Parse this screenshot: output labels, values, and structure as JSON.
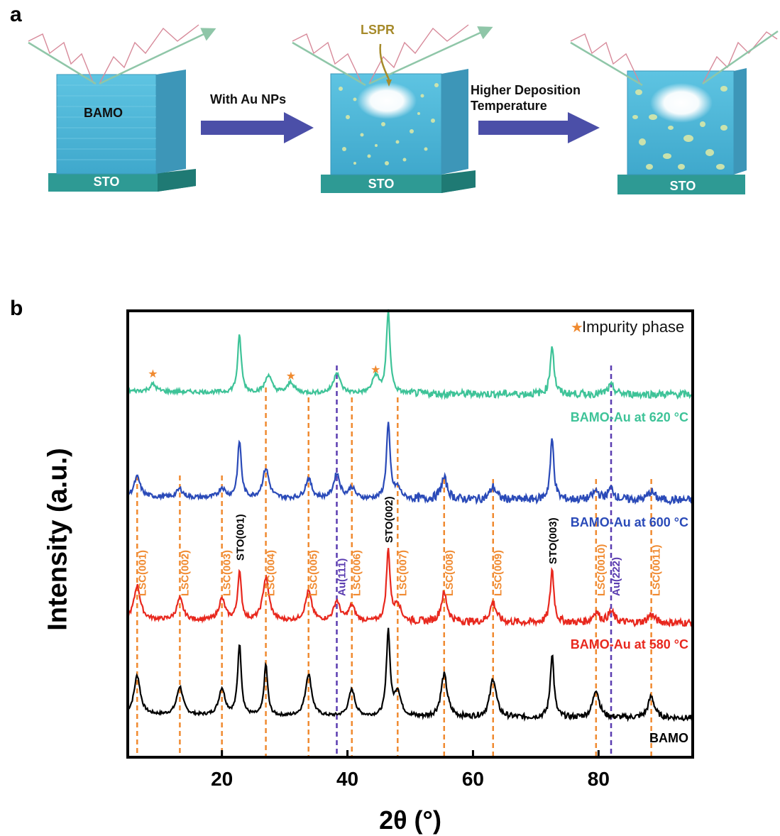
{
  "panel_a": {
    "label": "a",
    "film_label": "BAMO",
    "substrate_label": "STO",
    "lspr_label": "LSPR",
    "step1_label": "With Au NPs",
    "step2_label": "Higher Deposition Temperature",
    "colors": {
      "film": "#4fb8d8",
      "substrate": "#2e9a94",
      "arrow": "#4b4fa8",
      "lspr": "#a68a2a",
      "wave_in": "#d78a9a",
      "wave_out": "#6fb08a",
      "particles": "#d8e8a8"
    }
  },
  "panel_b": {
    "label": "b",
    "legend_text": "Impurity phase",
    "chart_data": {
      "type": "line",
      "xlabel": "2θ (°)",
      "ylabel": "Intensity (a.u.)",
      "xlim": [
        5,
        95
      ],
      "xticks": [
        20,
        40,
        60,
        80
      ],
      "y_ticks_shown": false,
      "series": [
        {
          "name": "BAMO",
          "color": "#000000",
          "peaks": [
            [
              6.5,
              55
            ],
            [
              13.3,
              40
            ],
            [
              20.0,
              38
            ],
            [
              22.8,
              100
            ],
            [
              27.0,
              72
            ],
            [
              33.8,
              60
            ],
            [
              40.7,
              38
            ],
            [
              46.5,
              120
            ],
            [
              48.0,
              35
            ],
            [
              55.4,
              60
            ],
            [
              63.2,
              55
            ],
            [
              72.6,
              90
            ],
            [
              79.6,
              40
            ],
            [
              88.4,
              30
            ]
          ]
        },
        {
          "name": "BAMO-Au at 580 °C",
          "color": "#e8281e",
          "peaks": [
            [
              6.5,
              48
            ],
            [
              13.3,
              30
            ],
            [
              20.0,
              30
            ],
            [
              22.8,
              68
            ],
            [
              27.0,
              60
            ],
            [
              33.8,
              42
            ],
            [
              38.3,
              28
            ],
            [
              40.7,
              22
            ],
            [
              46.5,
              100
            ],
            [
              48.0,
              25
            ],
            [
              55.4,
              40
            ],
            [
              63.2,
              28
            ],
            [
              72.6,
              75
            ],
            [
              79.6,
              15
            ],
            [
              82.0,
              15
            ],
            [
              88.4,
              12
            ]
          ]
        },
        {
          "name": "BAMO-Au at 600 °C",
          "color": "#2a4ab8",
          "peaks": [
            [
              6.5,
              28
            ],
            [
              13.3,
              12
            ],
            [
              20.0,
              14
            ],
            [
              22.8,
              80
            ],
            [
              27.0,
              42
            ],
            [
              33.8,
              28
            ],
            [
              38.3,
              35
            ],
            [
              40.7,
              15
            ],
            [
              46.5,
              105
            ],
            [
              48.0,
              15
            ],
            [
              55.4,
              30
            ],
            [
              63.2,
              18
            ],
            [
              72.6,
              85
            ],
            [
              79.6,
              12
            ],
            [
              82.0,
              16
            ],
            [
              88.4,
              12
            ]
          ]
        },
        {
          "name": "BAMO-Au at 620 °C",
          "color": "#3ec398",
          "peaks": [
            [
              9.0,
              10
            ],
            [
              22.8,
              80
            ],
            [
              27.4,
              25
            ],
            [
              31.0,
              15
            ],
            [
              38.3,
              30
            ],
            [
              44.5,
              25
            ],
            [
              46.5,
              115
            ],
            [
              72.6,
              70
            ],
            [
              82.0,
              12
            ]
          ]
        }
      ],
      "reference_lines": [
        {
          "x": 6.5,
          "label": "LSC(001)",
          "group": "LSC"
        },
        {
          "x": 13.3,
          "label": "LSC(002)",
          "group": "LSC"
        },
        {
          "x": 20.0,
          "label": "LSC(003)",
          "group": "LSC"
        },
        {
          "x": 27.0,
          "label": "LSC(004)",
          "group": "LSC"
        },
        {
          "x": 33.8,
          "label": "LSC(005)",
          "group": "LSC"
        },
        {
          "x": 38.3,
          "label": "Au(111)",
          "group": "Au"
        },
        {
          "x": 40.7,
          "label": "LSC(006)",
          "group": "LSC"
        },
        {
          "x": 48.0,
          "label": "LSC(007)",
          "group": "LSC"
        },
        {
          "x": 55.4,
          "label": "LSC(008)",
          "group": "LSC"
        },
        {
          "x": 63.2,
          "label": "LSC(009)",
          "group": "LSC"
        },
        {
          "x": 79.6,
          "label": "LSC(0010)",
          "group": "LSC"
        },
        {
          "x": 82.0,
          "label": "Au(222)",
          "group": "Au"
        },
        {
          "x": 88.4,
          "label": "LSC(0011)",
          "group": "LSC"
        }
      ],
      "substrate_peaks": [
        {
          "x": 22.8,
          "label": "STO(001)"
        },
        {
          "x": 46.5,
          "label": "STO(002)"
        },
        {
          "x": 72.6,
          "label": "STO(003)"
        }
      ],
      "impurity_markers_x": [
        9.0,
        31.0,
        44.5
      ],
      "colors": {
        "LSC": "#f08a30",
        "Au": "#5a3cb0",
        "STO": "#000000",
        "impurity": "#f08a30"
      }
    }
  }
}
